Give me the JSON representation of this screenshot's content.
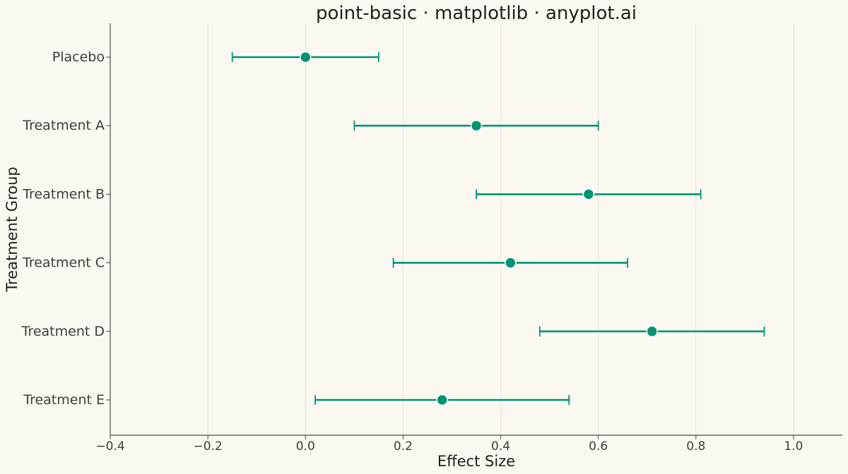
{
  "chart_data": {
    "type": "scatter",
    "title": "point-basic · matplotlib · anyplot.ai",
    "xlabel": "Effect Size",
    "ylabel": "Treatment Group",
    "xlim": [
      -0.4,
      1.1
    ],
    "xticks": [
      -0.4,
      -0.2,
      0.0,
      0.2,
      0.4,
      0.6,
      0.8,
      1.0
    ],
    "xtick_labels": [
      "−0.4",
      "−0.2",
      "0.0",
      "0.2",
      "0.4",
      "0.6",
      "0.8",
      "1.0"
    ],
    "grid": "vertical",
    "categories": [
      "Placebo",
      "Treatment A",
      "Treatment B",
      "Treatment C",
      "Treatment D",
      "Treatment E"
    ],
    "points": [
      {
        "category": "Placebo",
        "value": 0.0,
        "lower": -0.15,
        "upper": 0.15
      },
      {
        "category": "Treatment A",
        "value": 0.35,
        "lower": 0.1,
        "upper": 0.6
      },
      {
        "category": "Treatment B",
        "value": 0.58,
        "lower": 0.35,
        "upper": 0.81
      },
      {
        "category": "Treatment C",
        "value": 0.42,
        "lower": 0.18,
        "upper": 0.66
      },
      {
        "category": "Treatment D",
        "value": 0.71,
        "lower": 0.48,
        "upper": 0.94
      },
      {
        "category": "Treatment E",
        "value": 0.28,
        "lower": 0.02,
        "upper": 0.54
      }
    ],
    "colors": {
      "point": "#009473",
      "background": "#FAF8F1",
      "grid": "#E5E2DA",
      "axis": "#4a4a4a"
    }
  }
}
